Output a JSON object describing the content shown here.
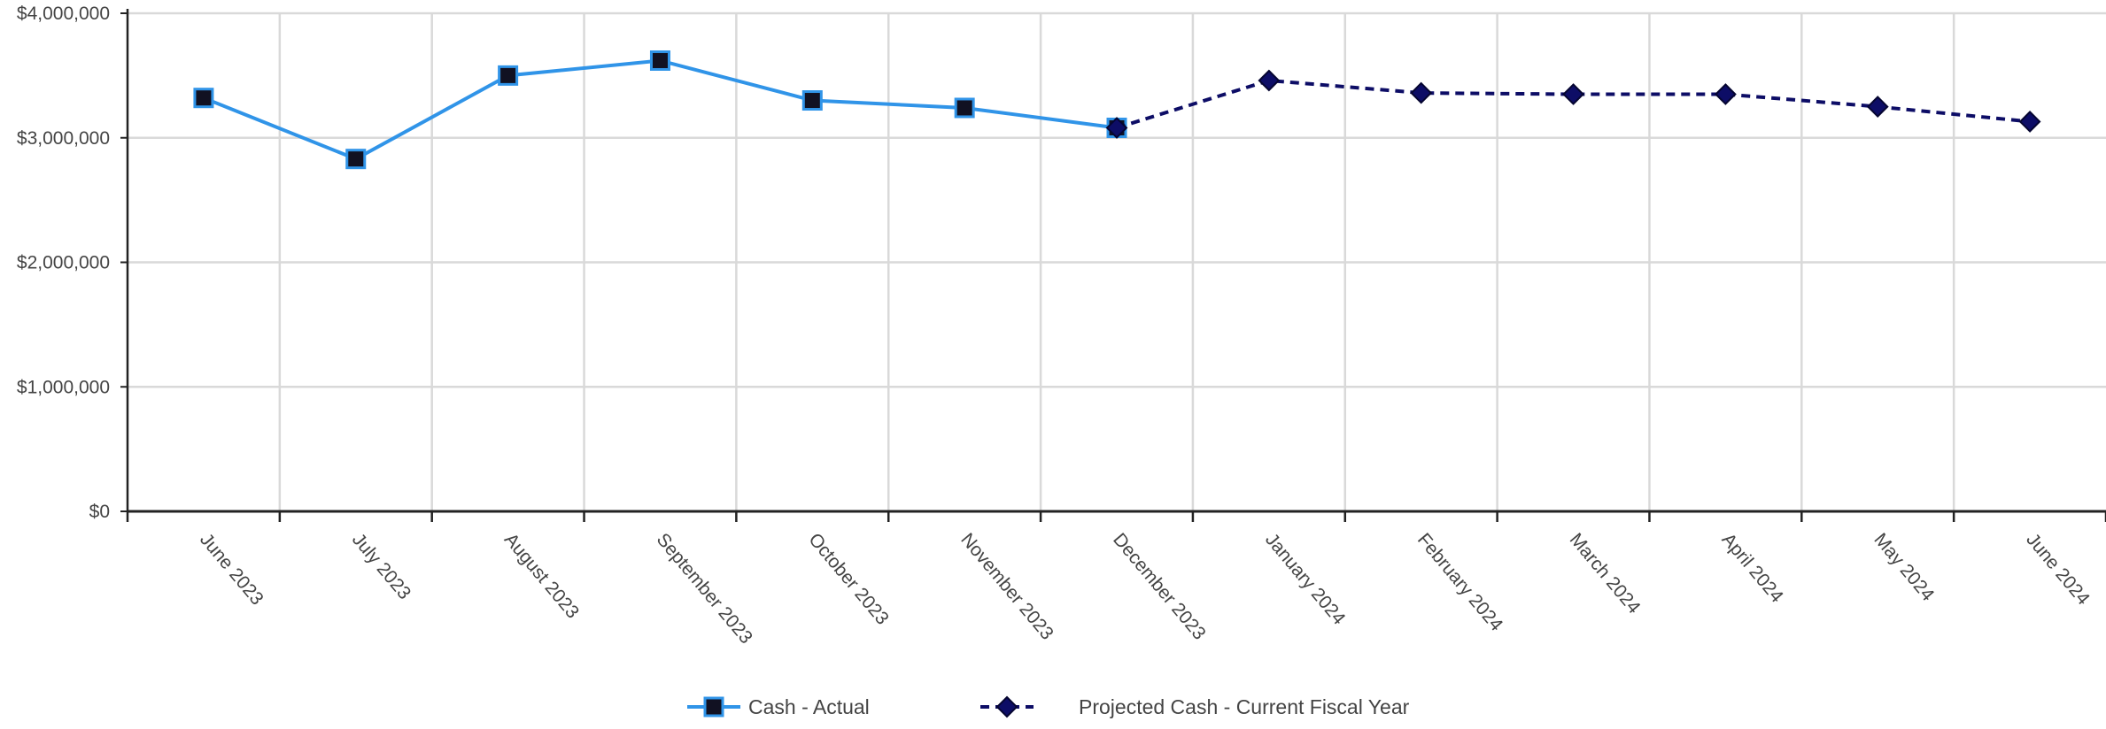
{
  "chart_data": {
    "type": "line",
    "categories": [
      "June 2023",
      "July 2023",
      "August 2023",
      "September 2023",
      "October 2023",
      "November 2023",
      "December 2023",
      "January 2024",
      "February 2024",
      "March 2024",
      "April 2024",
      "May 2024",
      "June 2024"
    ],
    "y_ticks": [
      "$0",
      "$1,000,000",
      "$2,000,000",
      "$3,000,000",
      "$4,000,000"
    ],
    "ylim": [
      0,
      4000000
    ],
    "grid": true,
    "legend_position": "bottom-center",
    "series": [
      {
        "name": "Cash - Actual",
        "color": "#3094e8",
        "marker": "square",
        "line_style": "solid",
        "values": [
          3320000,
          2830000,
          3500000,
          3620000,
          3300000,
          3240000,
          3080000,
          null,
          null,
          null,
          null,
          null,
          null
        ]
      },
      {
        "name": "Projected Cash - Current Fiscal Year",
        "color": "#0d0d66",
        "marker": "diamond",
        "line_style": "dashed",
        "values": [
          null,
          null,
          null,
          null,
          null,
          null,
          3080000,
          3460000,
          3360000,
          3350000,
          3350000,
          3250000,
          3130000
        ]
      }
    ]
  }
}
